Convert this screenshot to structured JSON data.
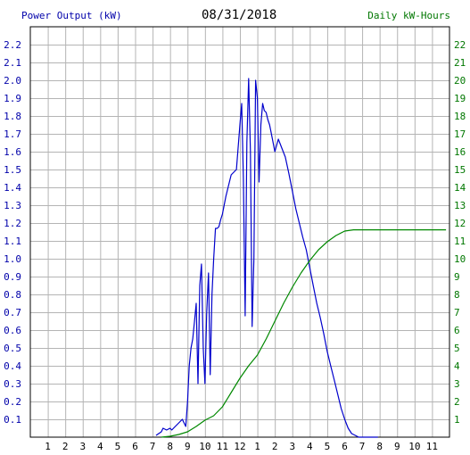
{
  "chart_data": {
    "type": "line",
    "title": "08/31/2018",
    "ylabel": "Power Output (kW)",
    "y2label": "Daily kW-Hours",
    "x_ticks": [
      "1",
      "2",
      "3",
      "4",
      "5",
      "6",
      "7",
      "8",
      "9",
      "10",
      "11",
      "12",
      "1",
      "2",
      "3",
      "4",
      "5",
      "6",
      "7",
      "8",
      "9",
      "10",
      "11"
    ],
    "y_ticks": [
      "0.1",
      "0.2",
      "0.3",
      "0.4",
      "0.5",
      "0.6",
      "0.7",
      "0.8",
      "0.9",
      "1.0",
      "1.1",
      "1.2",
      "1.3",
      "1.4",
      "1.5",
      "1.6",
      "1.7",
      "1.8",
      "1.9",
      "2.0",
      "2.1",
      "2.2"
    ],
    "y2_ticks": [
      "1",
      "2",
      "3",
      "4",
      "5",
      "6",
      "7",
      "8",
      "9",
      "10",
      "11",
      "12",
      "13",
      "14",
      "15",
      "16",
      "17",
      "18",
      "19",
      "20",
      "21",
      "22"
    ],
    "xlim": [
      0,
      24
    ],
    "ylim": [
      0,
      2.3
    ],
    "y2lim": [
      0,
      23
    ],
    "grid": true,
    "series": [
      {
        "axis": "left",
        "color": "#0000cc",
        "x": [
          7.2,
          7.5,
          7.6,
          7.8,
          8.0,
          8.1,
          8.3,
          8.5,
          8.7,
          8.9,
          9.0,
          9.1,
          9.2,
          9.3,
          9.4,
          9.5,
          9.6,
          9.7,
          9.8,
          9.9,
          10.0,
          10.1,
          10.2,
          10.3,
          10.4,
          10.5,
          10.6,
          10.7,
          10.8,
          10.9,
          11.0,
          11.2,
          11.5,
          11.8,
          12.0,
          12.1,
          12.2,
          12.3,
          12.4,
          12.5,
          12.6,
          12.7,
          12.8,
          12.9,
          13.0,
          13.1,
          13.2,
          13.3,
          13.4,
          13.5,
          13.6,
          13.7,
          13.8,
          14.0,
          14.2,
          14.4,
          14.6,
          14.8,
          15.0,
          15.2,
          15.4,
          15.6,
          15.8,
          16.0,
          16.2,
          16.4,
          16.6,
          16.8,
          17.0,
          17.2,
          17.4,
          17.6,
          17.8,
          18.0,
          18.2,
          18.4,
          18.6,
          18.8,
          19.0,
          19.2,
          19.4,
          19.6,
          19.8,
          19.9
        ],
        "values": [
          0.01,
          0.03,
          0.05,
          0.04,
          0.05,
          0.04,
          0.06,
          0.08,
          0.1,
          0.06,
          0.2,
          0.4,
          0.5,
          0.55,
          0.65,
          0.75,
          0.3,
          0.85,
          0.97,
          0.5,
          0.3,
          0.7,
          0.92,
          0.35,
          0.8,
          1.0,
          1.17,
          1.17,
          1.18,
          1.22,
          1.25,
          1.35,
          1.47,
          1.5,
          1.75,
          1.87,
          1.45,
          0.68,
          1.65,
          2.01,
          1.6,
          0.62,
          1.0,
          2.0,
          1.9,
          1.43,
          1.75,
          1.87,
          1.83,
          1.82,
          1.78,
          1.75,
          1.7,
          1.6,
          1.67,
          1.62,
          1.57,
          1.48,
          1.38,
          1.28,
          1.2,
          1.12,
          1.05,
          0.95,
          0.85,
          0.75,
          0.67,
          0.58,
          0.48,
          0.4,
          0.32,
          0.24,
          0.16,
          0.1,
          0.05,
          0.02,
          0.01,
          0.0,
          0.0,
          0.0,
          0.0,
          0.0,
          0.0,
          0.0
        ]
      },
      {
        "axis": "right",
        "color": "#008800",
        "x": [
          7.5,
          8.0,
          8.5,
          9.0,
          9.5,
          10.0,
          10.5,
          11.0,
          11.5,
          12.0,
          12.5,
          13.0,
          13.5,
          14.0,
          14.5,
          15.0,
          15.5,
          16.0,
          16.5,
          17.0,
          17.5,
          18.0,
          18.5,
          19.0,
          19.5,
          20.0,
          21.0,
          22.0,
          23.0,
          23.8
        ],
        "values": [
          0.0,
          0.05,
          0.15,
          0.3,
          0.6,
          0.95,
          1.2,
          1.7,
          2.5,
          3.3,
          4.0,
          4.6,
          5.5,
          6.5,
          7.5,
          8.4,
          9.2,
          9.9,
          10.5,
          10.95,
          11.3,
          11.55,
          11.62,
          11.62,
          11.62,
          11.62,
          11.62,
          11.62,
          11.62,
          11.62
        ]
      }
    ]
  }
}
